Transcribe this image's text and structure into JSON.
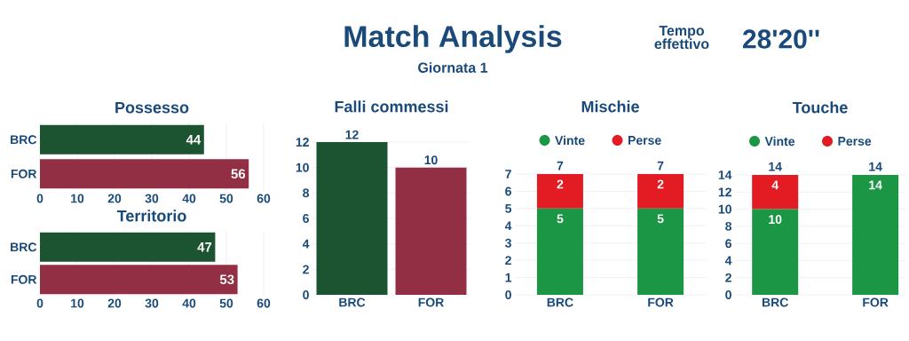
{
  "chart_data": [
    {
      "type": "other",
      "title": "Match Analysis",
      "subtitle": "Giornata 1",
      "annotations": [
        "Tempo effettivo",
        "28'20''"
      ]
    },
    {
      "type": "bar",
      "orientation": "horizontal",
      "title": "Possesso",
      "categories": [
        "BRC",
        "FOR"
      ],
      "values": [
        44,
        56
      ],
      "colors": [
        "#1c5330",
        "#932f44"
      ],
      "xlim": [
        0,
        60
      ],
      "xticks": [
        0,
        10,
        20,
        30,
        40,
        50,
        60
      ],
      "grid": "x",
      "data_labels": true
    },
    {
      "type": "bar",
      "orientation": "horizontal",
      "title": "Territorio",
      "categories": [
        "BRC",
        "FOR"
      ],
      "values": [
        47,
        53
      ],
      "colors": [
        "#1c5330",
        "#932f44"
      ],
      "xlim": [
        0,
        60
      ],
      "xticks": [
        0,
        10,
        20,
        30,
        40,
        50,
        60
      ],
      "grid": "x",
      "data_labels": true
    },
    {
      "type": "bar",
      "title": "Falli commessi",
      "categories": [
        "BRC",
        "FOR"
      ],
      "values": [
        12,
        10
      ],
      "colors": [
        "#1c5330",
        "#932f44"
      ],
      "ylim": [
        0,
        12
      ],
      "yticks": [
        0,
        2,
        4,
        6,
        8,
        10,
        12
      ],
      "grid": "y",
      "data_labels": true
    },
    {
      "type": "bar",
      "stacked": true,
      "title": "Mischie",
      "categories": [
        "BRC",
        "FOR"
      ],
      "ylim": [
        0,
        7
      ],
      "yticks": [
        0,
        1,
        2,
        3,
        4,
        5,
        6,
        7
      ],
      "grid": "y",
      "legend": "top",
      "totals": [
        "7",
        "7"
      ],
      "series": [
        {
          "name": "Vinte",
          "color": "#1a9645",
          "values": [
            5,
            5
          ],
          "value_labels": [
            "5",
            "5"
          ]
        },
        {
          "name": "Perse",
          "color": "#e31b23",
          "values": [
            2,
            2
          ],
          "value_labels": [
            "2",
            "2"
          ]
        }
      ]
    },
    {
      "type": "bar",
      "stacked": true,
      "title": "Touche",
      "categories": [
        "BRC",
        "FOR"
      ],
      "ylim": [
        0,
        14
      ],
      "yticks": [
        0,
        2,
        4,
        6,
        8,
        10,
        12,
        14
      ],
      "grid": "y",
      "legend": "top",
      "totals": [
        "14",
        "14"
      ],
      "series": [
        {
          "name": "Vinte",
          "color": "#1a9645",
          "values": [
            10,
            14
          ],
          "value_labels": [
            "10",
            "14"
          ]
        },
        {
          "name": "Perse",
          "color": "#e31b23",
          "values": [
            4,
            0
          ],
          "value_labels": [
            "4",
            null
          ]
        }
      ]
    }
  ]
}
